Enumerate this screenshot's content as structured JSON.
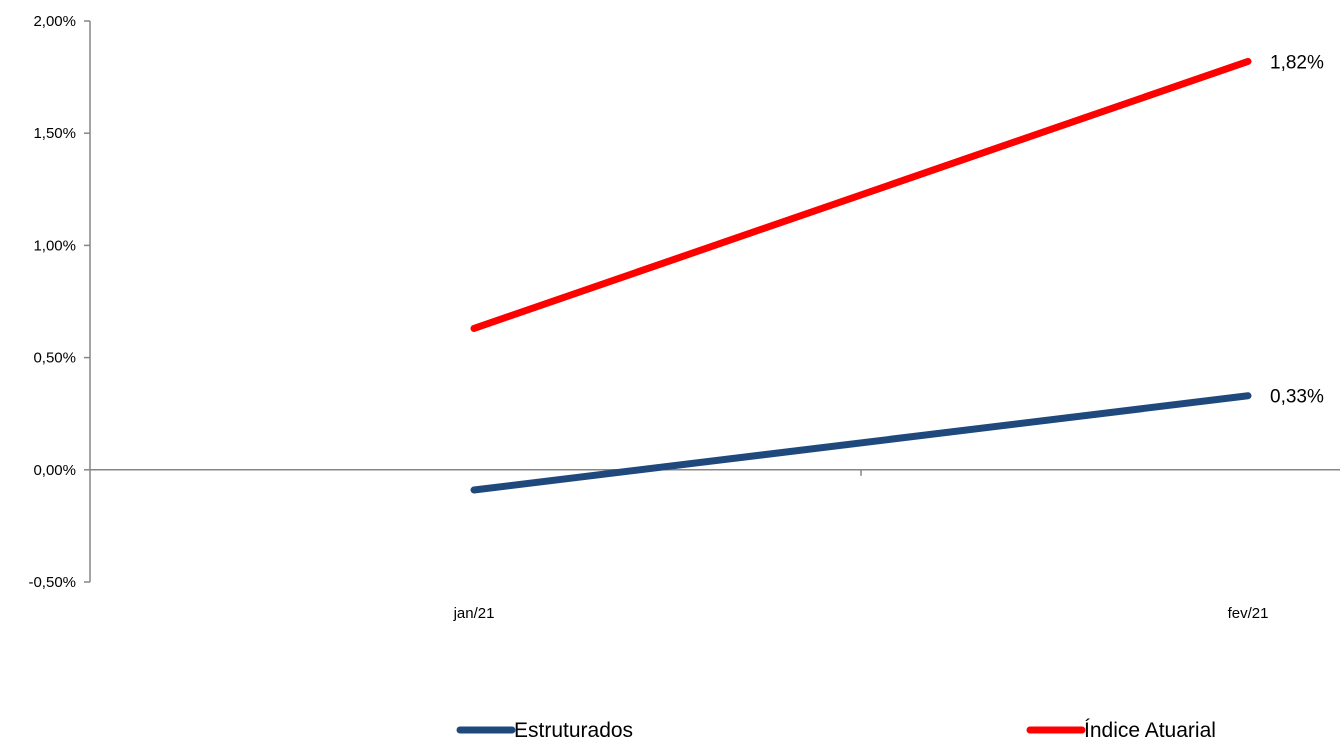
{
  "chart_data": {
    "type": "line",
    "title": "",
    "xlabel": "",
    "ylabel": "",
    "categories": [
      "jan/21",
      "fev/21"
    ],
    "ylim": [
      -0.5,
      2.0
    ],
    "y_ticks": [
      "2,00%",
      "1,50%",
      "1,00%",
      "0,50%",
      "0,00%",
      "-0,50%"
    ],
    "y_tick_values": [
      2.0,
      1.5,
      1.0,
      0.5,
      0.0,
      -0.5
    ],
    "grid": false,
    "legend_position": "bottom",
    "series": [
      {
        "name": "Estruturados",
        "color": "#1F497D",
        "values": [
          -0.09,
          0.33
        ],
        "end_label": "0,33%"
      },
      {
        "name": "Índice Atuarial",
        "color": "#FF0000",
        "values": [
          0.63,
          1.82
        ],
        "end_label": "1,82%"
      }
    ]
  }
}
